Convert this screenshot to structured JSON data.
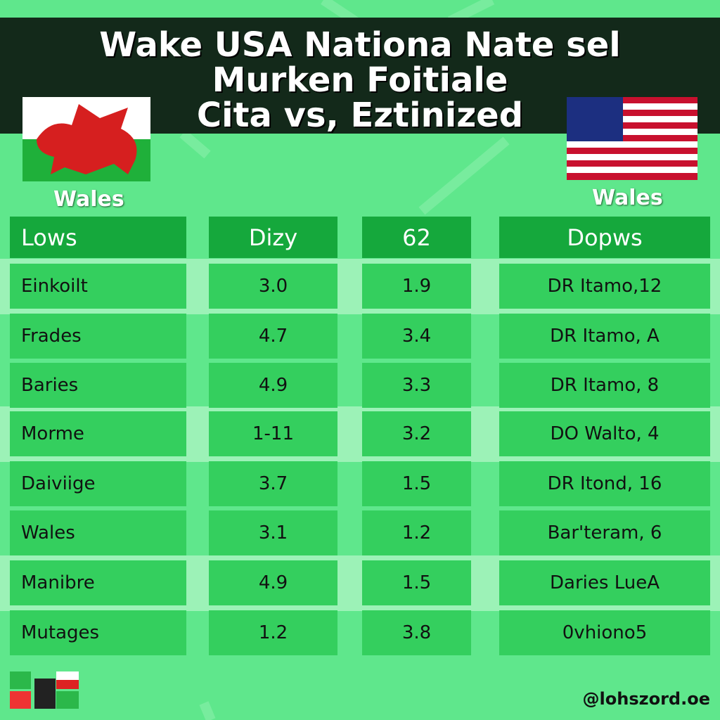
{
  "header": {
    "title_lines": [
      "Wake USA Nationa Nate sel",
      "Murken Foitiale",
      "Cita vs, Eztinized"
    ]
  },
  "left_team": "Wales",
  "right_team": "Wales",
  "table": {
    "columns": [
      "Lows",
      "Dizy",
      "62",
      "Dopws"
    ],
    "rows": [
      [
        "Einkoilt",
        "3.0",
        "1.9",
        "DR Itamo,12"
      ],
      [
        "Frades",
        "4.7",
        "3.4",
        "DR Itamo, A"
      ],
      [
        "Baries",
        "4.9",
        "3.3",
        "DR Itamo, 8"
      ],
      [
        "Morme",
        "1-11",
        "3.2",
        "DO Walto, 4"
      ],
      [
        "Daiviige",
        "3.7",
        "1.5",
        "DR Itond, 16"
      ],
      [
        "Wales",
        "3.1",
        "1.2",
        "Bar'teram, 6"
      ],
      [
        "Manibre",
        "4.9",
        "1.5",
        "Daries LueA"
      ],
      [
        "Mutages",
        "1.2",
        "3.8",
        "0vhiono5"
      ]
    ]
  },
  "footer": {
    "handle": "@lohszord.oe"
  }
}
